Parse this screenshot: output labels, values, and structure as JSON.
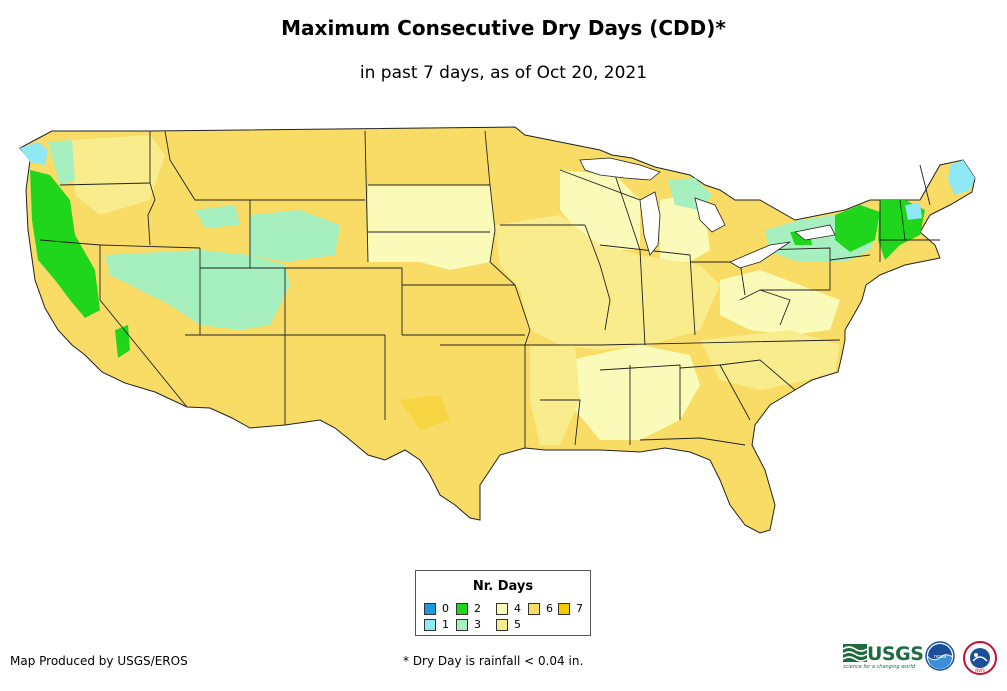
{
  "title": "Maximum Consecutive Dry Days (CDD)*",
  "subtitle": "in past 7 days, as of Oct 20, 2021",
  "legend": {
    "title": "Nr. Days",
    "items": [
      {
        "label": "0",
        "color": "#1a9be0"
      },
      {
        "label": "1",
        "color": "#8ee8f5"
      },
      {
        "label": "2",
        "color": "#1fd61c"
      },
      {
        "label": "3",
        "color": "#a6f0c0"
      },
      {
        "label": "4",
        "color": "#fafbb8"
      },
      {
        "label": "5",
        "color": "#f9ec8c"
      },
      {
        "label": "6",
        "color": "#f8dc66"
      },
      {
        "label": "7",
        "color": "#f6c800"
      }
    ]
  },
  "credit": "Map Produced by USGS/EROS",
  "footnote": "* Dry Day is rainfall < 0.04 in.",
  "logos": {
    "usgs": "USGS",
    "usgs_tagline": "science for a changing world",
    "noaa": "noaa",
    "nws": "NWS"
  }
}
